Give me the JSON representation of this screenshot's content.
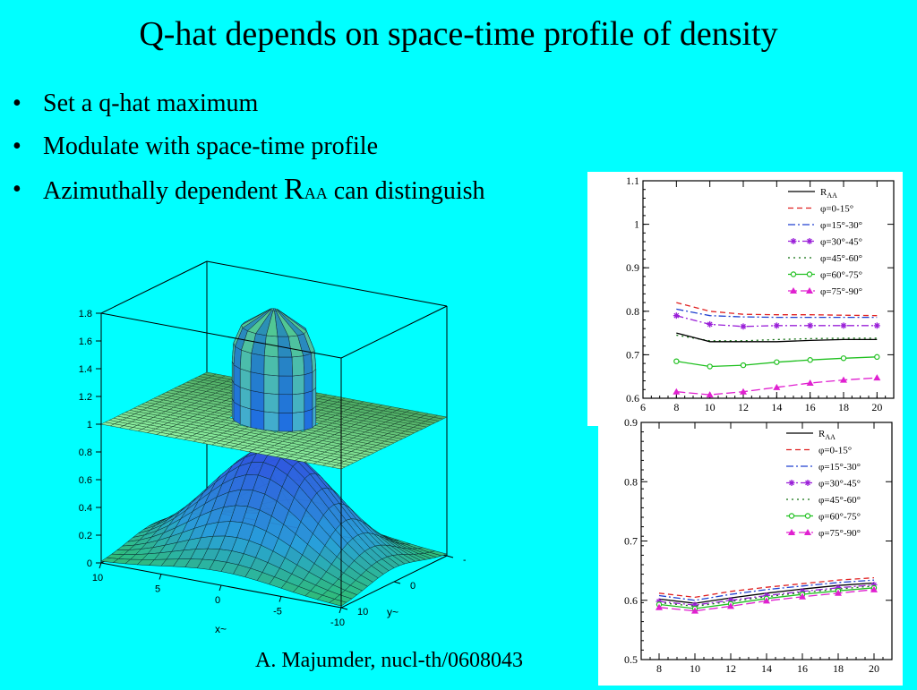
{
  "slide": {
    "title": "Q-hat depends on space-time profile of density",
    "bullets": [
      {
        "text": "Set a q-hat maximum"
      },
      {
        "text": "Modulate with space-time profile"
      },
      {
        "pre": "Azimuthally dependent ",
        "R": "R",
        "AA": "AA",
        "post": " can distinguish"
      }
    ],
    "citation": "A. Majumder, nucl-th/0608043"
  },
  "chart_data": [
    {
      "type": "surface",
      "z_ticks": [
        "1.8",
        "1.6",
        "1.4",
        "1.2",
        "1",
        "0.8",
        "0.6",
        "0.4",
        "0.2",
        "0"
      ],
      "x_ticks": [
        "10",
        "5",
        "0",
        "-5",
        "-10"
      ],
      "y_ticks": [
        "-10",
        "0",
        "10"
      ],
      "xlabel": "x~",
      "ylabel": "y~",
      "zlim": [
        0,
        1.8
      ],
      "surfaces": [
        {
          "name": "plane with q-hat peak",
          "base": 1.0,
          "peak_max": 1.8
        },
        {
          "name": "density profile",
          "base": 0.0,
          "peak_max": 0.8
        }
      ]
    },
    {
      "type": "line",
      "x": [
        8,
        10,
        12,
        14,
        16,
        18,
        20
      ],
      "xlim": [
        6,
        21
      ],
      "ylim": [
        0.6,
        1.1
      ],
      "x_ticks": [
        "6",
        "8",
        "10",
        "12",
        "14",
        "16",
        "18",
        "20"
      ],
      "y_ticks": [
        "0.6",
        "0.7",
        "0.8",
        "0.9",
        "1",
        "1.1"
      ],
      "legend": {
        "title_R": "R",
        "title_AA": "AA",
        "placement": "top-right"
      },
      "series": [
        {
          "name": "φ=0-15°",
          "color": "#e02020",
          "dash": "6,4",
          "marker": "none",
          "values": [
            0.82,
            0.8,
            0.793,
            0.792,
            0.792,
            0.791,
            0.79
          ]
        },
        {
          "name": "φ=15°-30°",
          "color": "#2040d0",
          "dash": "8,3,2,3",
          "marker": "none",
          "values": [
            0.805,
            0.79,
            0.787,
            0.786,
            0.786,
            0.786,
            0.786
          ]
        },
        {
          "name": "φ=30°-45°",
          "color": "#9a20d8",
          "dash": "8,3,2,3",
          "marker": "star",
          "values": [
            0.79,
            0.77,
            0.765,
            0.767,
            0.767,
            0.767,
            0.767
          ]
        },
        {
          "name": "φ=45°-60°",
          "color": "#107010",
          "dash": "2,4",
          "marker": "none",
          "values": [
            0.745,
            0.732,
            0.732,
            0.735,
            0.737,
            0.738,
            0.738
          ]
        },
        {
          "name": "R_AA",
          "color": "#000000",
          "dash": "",
          "marker": "none",
          "values": [
            0.75,
            0.73,
            0.73,
            0.73,
            0.733,
            0.735,
            0.735
          ]
        },
        {
          "name": "φ=60°-75°",
          "color": "#20c020",
          "dash": "",
          "marker": "circle",
          "values": [
            0.685,
            0.673,
            0.676,
            0.683,
            0.688,
            0.692,
            0.695
          ]
        },
        {
          "name": "φ=75°-90°",
          "color": "#e020d0",
          "dash": "10,4",
          "marker": "triangle",
          "values": [
            0.615,
            0.608,
            0.615,
            0.625,
            0.635,
            0.642,
            0.647
          ]
        }
      ]
    },
    {
      "type": "line",
      "x": [
        8,
        10,
        12,
        14,
        16,
        18,
        20
      ],
      "xlim": [
        7,
        21
      ],
      "ylim": [
        0.5,
        0.9
      ],
      "x_ticks": [
        "8",
        "10",
        "12",
        "14",
        "16",
        "18",
        "20"
      ],
      "y_ticks": [
        "0.5",
        "0.6",
        "0.7",
        "0.8",
        "0.9"
      ],
      "legend": {
        "title_R": "R",
        "title_AA": "AA",
        "placement": "top-right"
      },
      "series": [
        {
          "name": "φ=0-15°",
          "color": "#e02020",
          "dash": "6,4",
          "marker": "none",
          "values": [
            0.612,
            0.605,
            0.615,
            0.622,
            0.628,
            0.634,
            0.638
          ]
        },
        {
          "name": "φ=15°-30°",
          "color": "#2040d0",
          "dash": "8,3,2,3",
          "marker": "none",
          "values": [
            0.608,
            0.6,
            0.61,
            0.618,
            0.624,
            0.63,
            0.634
          ]
        },
        {
          "name": "R_AA",
          "color": "#000000",
          "dash": "",
          "marker": "none",
          "values": [
            0.602,
            0.595,
            0.604,
            0.612,
            0.619,
            0.625,
            0.629
          ]
        },
        {
          "name": "φ=30°-45°",
          "color": "#9a20d8",
          "dash": "8,3,2,3",
          "marker": "star",
          "values": [
            0.598,
            0.592,
            0.6,
            0.608,
            0.615,
            0.621,
            0.626
          ]
        },
        {
          "name": "φ=45°-60°",
          "color": "#107010",
          "dash": "2,4",
          "marker": "none",
          "values": [
            0.596,
            0.59,
            0.598,
            0.606,
            0.613,
            0.619,
            0.624
          ]
        },
        {
          "name": "φ=60°-75°",
          "color": "#20c020",
          "dash": "",
          "marker": "circle",
          "values": [
            0.593,
            0.586,
            0.594,
            0.603,
            0.61,
            0.616,
            0.621
          ]
        },
        {
          "name": "φ=75°-90°",
          "color": "#e020d0",
          "dash": "10,4",
          "marker": "triangle",
          "values": [
            0.588,
            0.582,
            0.59,
            0.599,
            0.606,
            0.612,
            0.618
          ]
        }
      ]
    }
  ]
}
